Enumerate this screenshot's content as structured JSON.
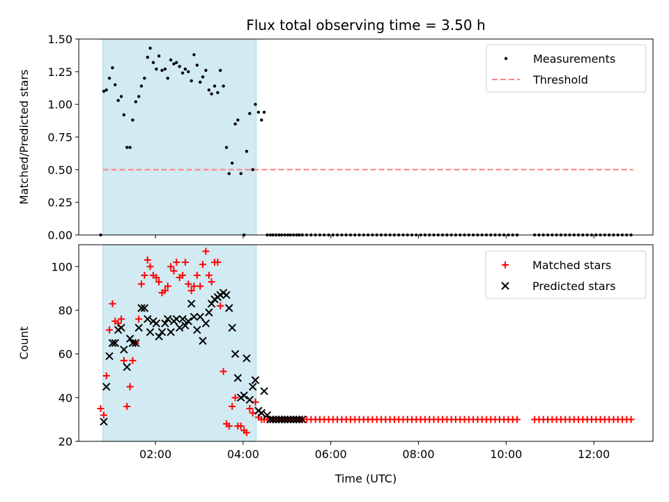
{
  "chart_data": {
    "type": "scatter",
    "title": "Flux total observing time = 3.50 h",
    "xlabel": "Time (UTC)",
    "xlim_hours": [
      0.25,
      13.35
    ],
    "x_ticks": [
      "02:00",
      "04:00",
      "06:00",
      "08:00",
      "10:00",
      "12:00"
    ],
    "x_tick_hours": [
      2,
      4,
      6,
      8,
      10,
      12
    ],
    "shaded_interval_hours": [
      0.8,
      4.3
    ],
    "shade_color": "#add8e6",
    "panels": [
      {
        "id": "ratio",
        "ylabel": "Matched/Predicted stars",
        "ylim": [
          0,
          1.5
        ],
        "y_ticks": [
          "0.00",
          "0.25",
          "0.50",
          "0.75",
          "1.00",
          "1.25",
          "1.50"
        ],
        "y_tick_values": [
          0,
          0.25,
          0.5,
          0.75,
          1.0,
          1.25,
          1.5
        ],
        "legend": [
          "Measurements",
          "Threshold"
        ],
        "threshold": {
          "name": "Threshold",
          "value": 0.5,
          "x_range_hours": [
            0.8,
            12.9
          ],
          "color": "#ff7f7f"
        },
        "measurements": {
          "name": "Measurements",
          "color": "#000000",
          "x": [
            0.75,
            0.82,
            0.88,
            0.95,
            1.02,
            1.08,
            1.15,
            1.22,
            1.28,
            1.35,
            1.42,
            1.48,
            1.55,
            1.62,
            1.68,
            1.75,
            1.82,
            1.88,
            1.95,
            2.02,
            2.08,
            2.15,
            2.22,
            2.28,
            2.35,
            2.42,
            2.48,
            2.55,
            2.62,
            2.68,
            2.75,
            2.82,
            2.88,
            2.95,
            3.02,
            3.08,
            3.15,
            3.22,
            3.28,
            3.35,
            3.42,
            3.48,
            3.55,
            3.62,
            3.68,
            3.75,
            3.82,
            3.88,
            3.95,
            4.02,
            4.08,
            4.15,
            4.22,
            4.28,
            4.35,
            4.42,
            4.48,
            4.55,
            4.62,
            4.68,
            4.75,
            4.82,
            4.88,
            4.95,
            5.02,
            5.08,
            5.15,
            5.22,
            5.28,
            5.35
          ],
          "y": [
            0.0,
            1.1,
            1.11,
            1.2,
            1.28,
            1.15,
            1.03,
            1.06,
            0.92,
            0.67,
            0.67,
            0.88,
            1.02,
            1.06,
            1.14,
            1.2,
            1.36,
            1.43,
            1.32,
            1.27,
            1.37,
            1.26,
            1.27,
            1.2,
            1.34,
            1.31,
            1.32,
            1.29,
            1.24,
            1.27,
            1.25,
            1.18,
            1.38,
            1.3,
            1.17,
            1.21,
            1.26,
            1.11,
            1.08,
            1.14,
            1.09,
            1.26,
            1.14,
            0.67,
            0.47,
            0.55,
            0.85,
            0.88,
            0.47,
            0.0,
            0.64,
            0.93,
            0.5,
            1.0,
            0.94,
            0.88,
            0.94,
            0.0,
            0.0,
            0.0,
            0.0,
            0.0,
            0.0,
            0.0,
            0.0,
            0.0,
            0.0,
            0.0,
            0.0,
            0.0
          ],
          "zero_runs_hours": [
            [
              5.45,
              10.25,
              0.1
            ],
            [
              10.65,
              12.9,
              0.1
            ]
          ],
          "zero_value": 0.0
        }
      },
      {
        "id": "counts",
        "ylabel": "Count",
        "ylim": [
          20,
          110
        ],
        "y_ticks": [
          "20",
          "40",
          "60",
          "80",
          "100"
        ],
        "y_tick_values": [
          20,
          40,
          60,
          80,
          100
        ],
        "legend": [
          "Matched stars",
          "Predicted stars"
        ],
        "matched": {
          "name": "Matched stars",
          "color": "#ff0000",
          "x": [
            0.75,
            0.82,
            0.88,
            0.95,
            1.02,
            1.08,
            1.15,
            1.22,
            1.28,
            1.35,
            1.42,
            1.48,
            1.55,
            1.62,
            1.68,
            1.75,
            1.82,
            1.88,
            1.95,
            2.02,
            2.08,
            2.15,
            2.22,
            2.28,
            2.35,
            2.42,
            2.48,
            2.55,
            2.62,
            2.68,
            2.75,
            2.82,
            2.88,
            2.95,
            3.02,
            3.08,
            3.15,
            3.22,
            3.28,
            3.35,
            3.42,
            3.48,
            3.55,
            3.62,
            3.68,
            3.75,
            3.82,
            3.88,
            3.95,
            4.02,
            4.08,
            4.15,
            4.22,
            4.28,
            4.35,
            4.42,
            4.48,
            4.55,
            4.62,
            4.68,
            4.75,
            4.82,
            4.88,
            4.95,
            5.02,
            5.08,
            5.15,
            5.22,
            5.28,
            5.35
          ],
          "y": [
            35,
            32,
            50,
            71,
            83,
            75,
            74,
            76,
            57,
            36,
            45,
            57,
            65,
            76,
            92,
            96,
            103,
            100,
            96,
            95,
            93,
            88,
            89,
            91,
            100,
            98,
            102,
            95,
            96,
            102,
            92,
            89,
            91,
            96,
            91,
            101,
            107,
            96,
            93,
            102,
            102,
            82,
            52,
            28,
            27,
            36,
            40,
            27,
            27,
            25,
            24,
            35,
            33,
            38,
            31,
            30,
            30,
            30,
            30,
            30,
            30,
            30,
            30,
            30,
            30,
            30,
            30,
            30,
            30,
            30
          ],
          "flat_runs_hours": [
            [
              5.45,
              10.25,
              0.1
            ],
            [
              10.65,
              12.9,
              0.1
            ]
          ],
          "flat_value": 30
        },
        "predicted": {
          "name": "Predicted stars",
          "color": "#000000",
          "x": [
            0.82,
            0.88,
            0.95,
            1.02,
            1.08,
            1.15,
            1.22,
            1.28,
            1.35,
            1.42,
            1.48,
            1.55,
            1.62,
            1.68,
            1.75,
            1.82,
            1.88,
            1.95,
            2.02,
            2.08,
            2.15,
            2.22,
            2.28,
            2.35,
            2.42,
            2.48,
            2.55,
            2.62,
            2.68,
            2.75,
            2.82,
            2.88,
            2.95,
            3.02,
            3.08,
            3.15,
            3.22,
            3.28,
            3.35,
            3.42,
            3.48,
            3.55,
            3.62,
            3.68,
            3.75,
            3.82,
            3.88,
            3.95,
            4.02,
            4.08,
            4.15,
            4.22,
            4.28,
            4.35,
            4.42,
            4.48,
            4.55,
            4.62,
            4.68,
            4.75,
            4.82,
            4.88,
            4.95,
            5.02,
            5.08,
            5.15,
            5.22,
            5.28,
            5.35
          ],
          "y": [
            29,
            45,
            59,
            65,
            65,
            71,
            72,
            62,
            54,
            67,
            65,
            65,
            72,
            81,
            81,
            76,
            70,
            75,
            74,
            68,
            70,
            74,
            76,
            70,
            75,
            76,
            72,
            76,
            73,
            75,
            83,
            77,
            71,
            77,
            66,
            74,
            79,
            83,
            85,
            86,
            87,
            88,
            87,
            81,
            72,
            60,
            49,
            40,
            41,
            58,
            39,
            45,
            48,
            34,
            33,
            43,
            32,
            30,
            30,
            30,
            30,
            30,
            30,
            30,
            30,
            30,
            30,
            30,
            30
          ],
          "tail_count": 0
        }
      }
    ]
  }
}
